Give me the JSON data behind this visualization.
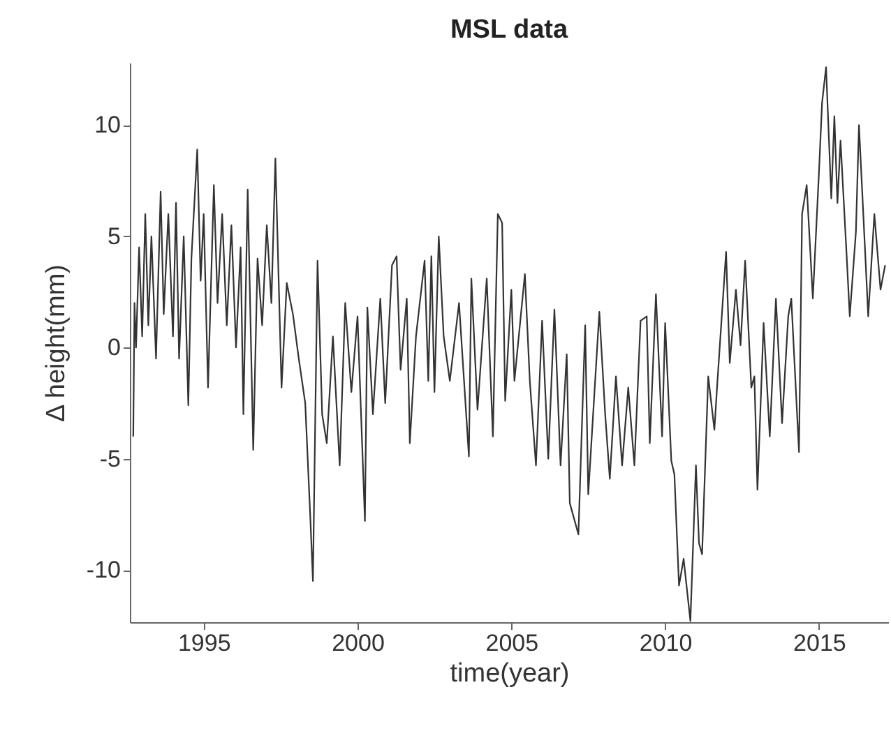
{
  "chart_data": {
    "type": "line",
    "title": "MSL data",
    "xlabel": "time(year)",
    "ylabel": "Δ height(mm)",
    "x": [
      1992.71,
      1992.75,
      1992.8,
      1992.9,
      1993.0,
      1993.1,
      1993.2,
      1993.3,
      1993.45,
      1993.6,
      1993.7,
      1993.85,
      1994.0,
      1994.1,
      1994.2,
      1994.35,
      1994.5,
      1994.6,
      1994.79,
      1994.9,
      1995.0,
      1995.14,
      1995.33,
      1995.45,
      1995.6,
      1995.75,
      1995.9,
      1996.05,
      1996.2,
      1996.29,
      1996.43,
      1996.61,
      1996.75,
      1996.9,
      1997.05,
      1997.2,
      1997.33,
      1997.53,
      1997.7,
      1997.9,
      1998.09,
      1998.3,
      1998.47,
      1998.55,
      1998.7,
      1998.85,
      1999.0,
      1999.2,
      1999.42,
      1999.6,
      1999.8,
      2000.0,
      2000.24,
      2000.32,
      2000.5,
      2000.74,
      2000.9,
      2001.12,
      2001.27,
      2001.4,
      2001.6,
      2001.7,
      2001.9,
      2002.18,
      2002.3,
      2002.4,
      2002.5,
      2002.64,
      2002.8,
      2003.0,
      2003.3,
      2003.62,
      2003.7,
      2003.9,
      2004.2,
      2004.4,
      2004.56,
      2004.7,
      2004.8,
      2005.0,
      2005.1,
      2005.44,
      2005.6,
      2005.8,
      2006.0,
      2006.2,
      2006.4,
      2006.6,
      2006.8,
      2006.9,
      2007.18,
      2007.4,
      2007.5,
      2007.86,
      2008.05,
      2008.2,
      2008.4,
      2008.6,
      2008.8,
      2009.0,
      2009.2,
      2009.4,
      2009.5,
      2009.7,
      2009.9,
      2010.0,
      2010.2,
      2010.3,
      2010.35,
      2010.45,
      2010.6,
      2010.82,
      2011.0,
      2011.1,
      2011.2,
      2011.4,
      2011.6,
      2011.7,
      2011.98,
      2012.1,
      2012.3,
      2012.45,
      2012.6,
      2012.8,
      2012.9,
      2013.0,
      2013.2,
      2013.4,
      2013.6,
      2013.8,
      2014.0,
      2014.1,
      2014.35,
      2014.45,
      2014.6,
      2014.8,
      2015.0,
      2015.1,
      2015.23,
      2015.4,
      2015.5,
      2015.6,
      2015.7,
      2015.9,
      2016.0,
      2016.2,
      2016.3,
      2016.5,
      2016.6,
      2016.8,
      2017.0,
      2017.15
    ],
    "values": [
      -4.0,
      2.0,
      0.0,
      4.5,
      0.5,
      6.0,
      1.0,
      5.0,
      -0.5,
      7.0,
      1.5,
      6.0,
      0.5,
      6.5,
      -0.5,
      5.0,
      -2.6,
      4.0,
      8.9,
      3.0,
      6.0,
      -1.8,
      7.3,
      2.0,
      6.0,
      1.0,
      5.5,
      0.0,
      4.5,
      -3.0,
      7.1,
      -4.6,
      4.0,
      1.0,
      5.5,
      2.0,
      8.5,
      -1.8,
      2.9,
      1.5,
      -0.5,
      -2.5,
      -7.8,
      -10.5,
      3.9,
      -3.0,
      -4.3,
      0.5,
      -5.3,
      2.0,
      -2.0,
      1.4,
      -7.8,
      1.8,
      -3.0,
      2.2,
      -2.5,
      3.7,
      4.1,
      -1.0,
      2.2,
      -4.3,
      0.5,
      3.9,
      -1.5,
      4.1,
      -2.0,
      5.0,
      0.5,
      -1.5,
      2.0,
      -4.9,
      3.1,
      -2.8,
      3.1,
      -4.0,
      6.0,
      5.6,
      -2.4,
      2.6,
      -1.5,
      3.3,
      -1.5,
      -5.3,
      1.2,
      -5.0,
      1.7,
      -5.3,
      -0.3,
      -7.0,
      -8.4,
      1.0,
      -6.6,
      1.6,
      -3.0,
      -5.9,
      -1.3,
      -5.3,
      -1.8,
      -5.3,
      1.2,
      1.4,
      -4.3,
      2.4,
      -4.0,
      1.1,
      -5.1,
      -5.7,
      -7.4,
      -10.7,
      -9.5,
      -12.3,
      -5.3,
      -8.8,
      -9.3,
      -1.3,
      -3.7,
      -1.5,
      4.3,
      -0.7,
      2.6,
      0.1,
      3.9,
      -1.8,
      -1.3,
      -6.4,
      1.1,
      -4.0,
      2.2,
      -3.4,
      1.4,
      2.2,
      -4.7,
      6.0,
      7.3,
      2.2,
      7.9,
      11.0,
      12.6,
      6.7,
      10.4,
      6.5,
      9.3,
      4.1,
      1.4,
      5.2,
      10.0,
      4.3,
      1.4,
      6.0,
      2.6,
      3.7
    ],
    "color": "#333333",
    "line_style": "solid",
    "marker": "none",
    "grid": false,
    "xlim": [
      1992.6,
      2017.25
    ],
    "ylim": [
      -12.35,
      12.8
    ],
    "xticks": [
      1995,
      2000,
      2005,
      2010,
      2015
    ],
    "yticks": [
      -10,
      -5,
      0,
      5,
      10
    ]
  }
}
